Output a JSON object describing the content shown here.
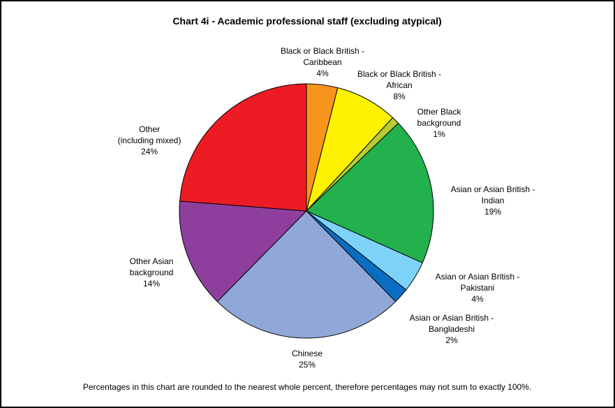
{
  "chart_data": {
    "type": "pie",
    "title": "Chart 4i - Academic professional staff (excluding atypical)",
    "footnote": "Percentages in this chart are rounded to the nearest whole percent, therefore percentages may not sum to exactly 100%.",
    "slices": [
      {
        "label": [
          "Black or Black British -",
          "Caribbean"
        ],
        "value": 4,
        "display": "4%",
        "color": "#F7941D"
      },
      {
        "label": [
          "Black or Black British -",
          "African"
        ],
        "value": 8,
        "display": "8%",
        "color": "#FFF200"
      },
      {
        "label": [
          "Other Black",
          "background"
        ],
        "value": 1,
        "display": "1%",
        "color": "#B5CC34"
      },
      {
        "label": [
          "Asian or Asian British -",
          "Indian"
        ],
        "value": 19,
        "display": "19%",
        "color": "#22B14C"
      },
      {
        "label": [
          "Asian or Asian British -",
          "Pakistani"
        ],
        "value": 4,
        "display": "4%",
        "color": "#7DD3F7"
      },
      {
        "label": [
          "Asian or Asian British -",
          "Bangladeshi"
        ],
        "value": 2,
        "display": "2%",
        "color": "#0B6DC1"
      },
      {
        "label": [
          "Chinese"
        ],
        "value": 25,
        "display": "25%",
        "color": "#8FA8D8"
      },
      {
        "label": [
          "Other Asian",
          "background"
        ],
        "value": 14,
        "display": "14%",
        "color": "#8E3F9E"
      },
      {
        "label": [
          "Other",
          "(including mixed)"
        ],
        "value": 24,
        "display": "24%",
        "color": "#ED1C24"
      }
    ]
  }
}
